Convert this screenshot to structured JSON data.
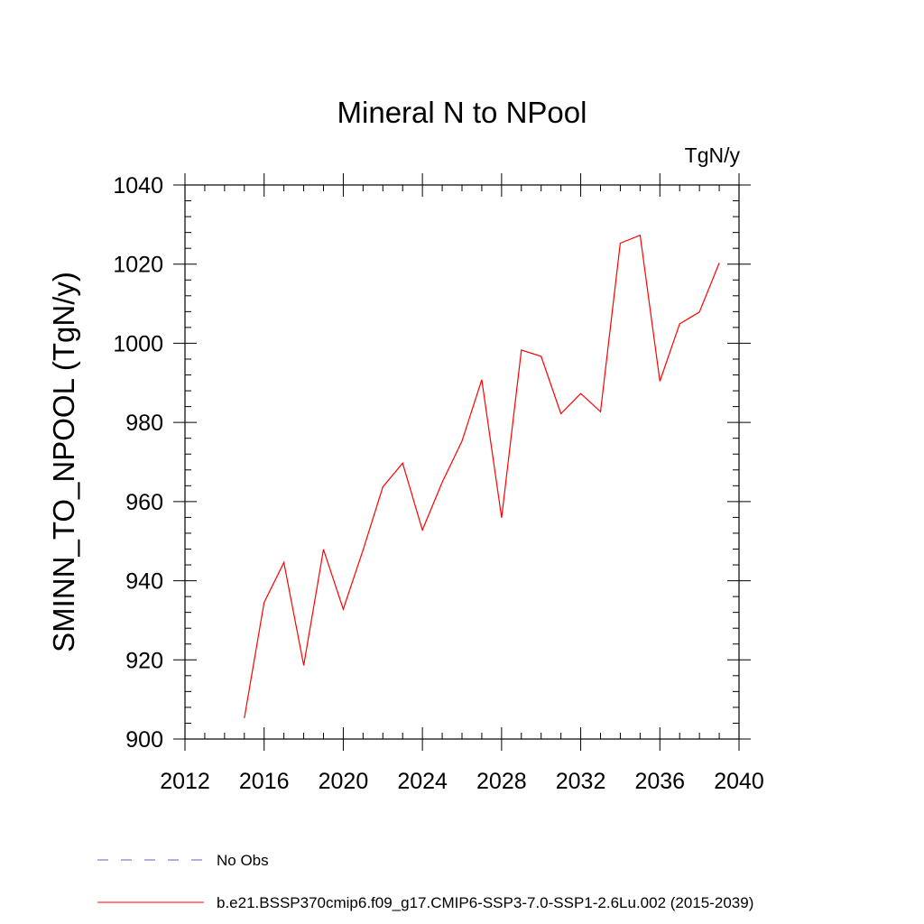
{
  "chart_data": {
    "type": "line",
    "title": "Mineral N to NPool",
    "units_label": "TgN/y",
    "xlabel": "",
    "ylabel": "SMINN_TO_NPOOL  (TgN/y)",
    "xlim": [
      2012,
      2040
    ],
    "ylim": [
      900,
      1040
    ],
    "x_ticks": [
      2012,
      2016,
      2020,
      2024,
      2028,
      2032,
      2036,
      2040
    ],
    "y_ticks": [
      900,
      920,
      940,
      960,
      980,
      1000,
      1020,
      1040
    ],
    "x_minor_step": 1,
    "y_minor_step": 4,
    "grid": false,
    "legend_position": "bottom",
    "series": [
      {
        "name": "b.e21.BSSP370cmip6.f09_g17.CMIP6-SSP3-7.0-SSP1-2.6Lu.002 (2015-2039)",
        "color": "#ff0000",
        "style": "solid",
        "x": [
          2015,
          2016,
          2017,
          2018,
          2019,
          2020,
          2021,
          2022,
          2023,
          2024,
          2025,
          2026,
          2027,
          2028,
          2029,
          2030,
          2031,
          2032,
          2033,
          2034,
          2035,
          2036,
          2037,
          2038,
          2039
        ],
        "y": [
          905.3,
          934.5,
          944.6,
          918.6,
          947.9,
          932.8,
          947.8,
          963.7,
          969.7,
          952.8,
          964.9,
          975.3,
          990.8,
          955.9,
          998.3,
          996.7,
          982.2,
          987.3,
          982.7,
          1025.3,
          1027.3,
          990.4,
          1004.9,
          1007.9,
          1020.3
        ]
      }
    ],
    "legend": [
      {
        "label": "No Obs",
        "color": "#6a5acd",
        "style": "dashed"
      },
      {
        "label": "b.e21.BSSP370cmip6.f09_g17.CMIP6-SSP3-7.0-SSP1-2.6Lu.002 (2015-2039)",
        "color": "#ff0000",
        "style": "solid"
      }
    ]
  }
}
